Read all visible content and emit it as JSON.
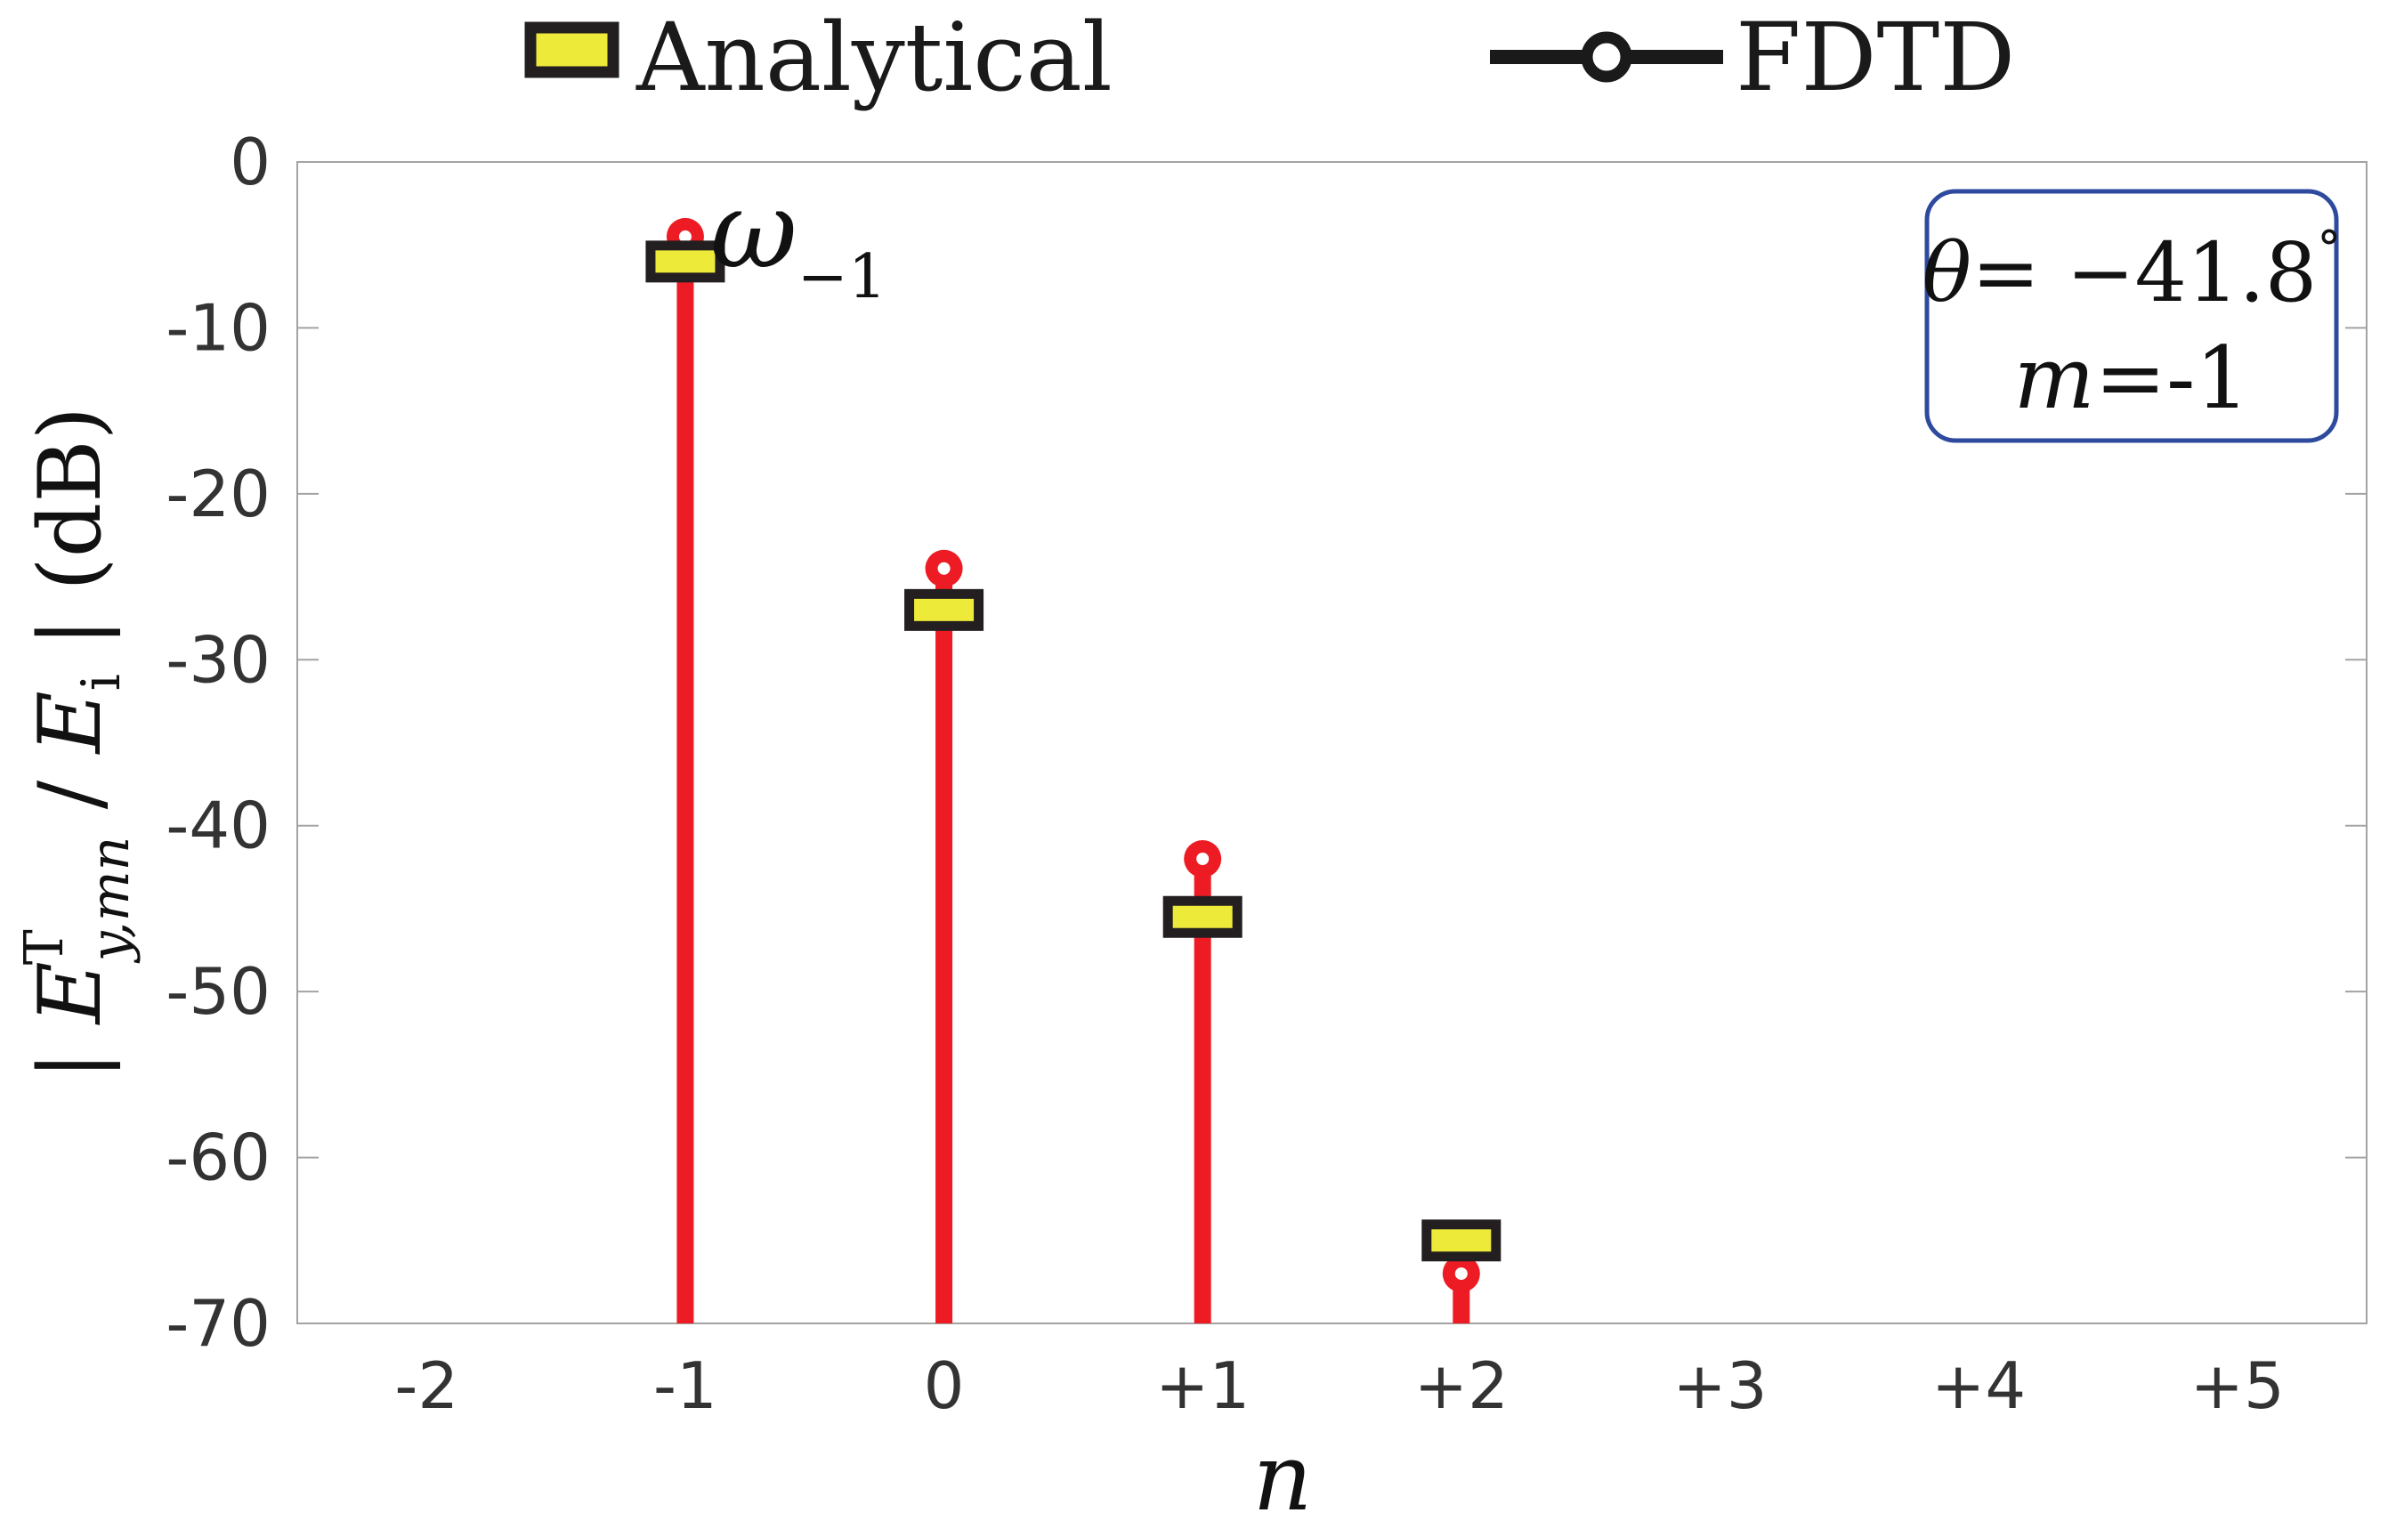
{
  "chart_data": {
    "type": "stem",
    "title": "",
    "xlabel": "n",
    "ylabel": {
      "prefix": "| ",
      "E": "E",
      "sup": "T",
      "sub": "y,mn",
      "slash": " / ",
      "E2": "E",
      "sub2": "i",
      "suffix": " | (dB)"
    },
    "xlim": [
      -2.5,
      5.5
    ],
    "ylim": [
      -70,
      0
    ],
    "x_ticks": [
      -2,
      -1,
      0,
      1,
      2,
      3,
      4,
      5
    ],
    "x_tick_labels": [
      "-2",
      "-1",
      "0",
      "+1",
      "+2",
      "+3",
      "+4",
      "+5"
    ],
    "y_ticks": [
      0,
      -10,
      -20,
      -30,
      -40,
      -50,
      -60,
      -70
    ],
    "y_tick_labels": [
      "0",
      "-10",
      "-20",
      "-30",
      "-40",
      "-50",
      "-60",
      "-70"
    ],
    "grid": false,
    "legend_position": "top-outside",
    "series": [
      {
        "name": "Analytical",
        "marker": "rectangle",
        "color": "#eeea3a",
        "edge_color": "#231f20",
        "x": [
          -1,
          0,
          1,
          2
        ],
        "y": [
          -6,
          -27,
          -45.5,
          -65
        ]
      },
      {
        "name": "FDTD",
        "marker": "circle",
        "color": "#ed1c24",
        "legend_color": "#1a1a1a",
        "x": [
          -1,
          0,
          1,
          2
        ],
        "y": [
          -4.5,
          -24.5,
          -42,
          -67
        ]
      }
    ],
    "annotations": {
      "mode_label": {
        "symbol": "ω",
        "sub": "−1",
        "x": -1,
        "y": -5
      },
      "info_box": {
        "theta_symbol": "θ",
        "theta_value": "= −41.8",
        "degree": "°",
        "m_symbol": "m",
        "m_value": "=-1",
        "border_color": "#2e4a9e"
      }
    }
  }
}
